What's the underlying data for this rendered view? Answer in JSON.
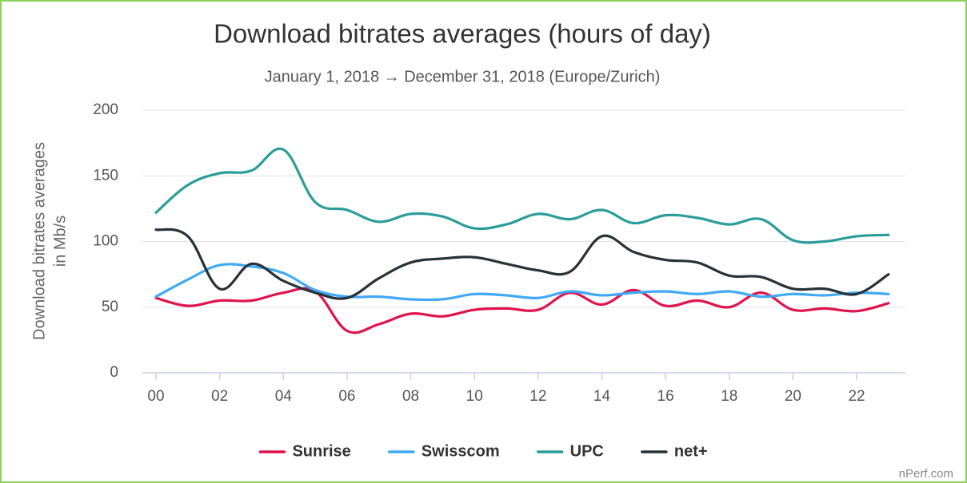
{
  "chart_data": {
    "type": "line",
    "title": "Download bitrates averages (hours of day)",
    "subtitle": "January 1, 2018 → December 31, 2018 (Europe/Zurich)",
    "ylabel": [
      "Download bitrates averages",
      "in Mb/s"
    ],
    "credit": "nPerf.com",
    "categories": [
      "00",
      null,
      "02",
      null,
      "04",
      null,
      "06",
      null,
      "08",
      null,
      "10",
      null,
      "12",
      null,
      "14",
      null,
      "16",
      null,
      "18",
      null,
      "20",
      null,
      "22",
      null
    ],
    "ylim": [
      0,
      200
    ],
    "yticks": [
      0,
      50,
      100,
      150,
      200
    ],
    "grid": true,
    "legend": "bottom",
    "series": [
      {
        "name": "Sunrise",
        "color": "#e0134e",
        "values": [
          57,
          51,
          55,
          55,
          61,
          62,
          32,
          37,
          45,
          43,
          48,
          49,
          48,
          61,
          52,
          63,
          51,
          55,
          50,
          61,
          48,
          49,
          47,
          53
        ]
      },
      {
        "name": "Swisscom",
        "color": "#3fa9f5",
        "values": [
          58,
          71,
          82,
          81,
          76,
          63,
          58,
          58,
          56,
          56,
          60,
          59,
          57,
          62,
          59,
          61,
          62,
          60,
          62,
          58,
          60,
          59,
          61,
          60
        ]
      },
      {
        "name": "UPC",
        "color": "#2a9d9a",
        "values": [
          122,
          143,
          152,
          154,
          170,
          130,
          124,
          115,
          121,
          119,
          110,
          113,
          121,
          117,
          124,
          114,
          120,
          118,
          113,
          117,
          101,
          100,
          104,
          105
        ]
      },
      {
        "name": "net+",
        "color": "#263238",
        "values": [
          109,
          104,
          64,
          83,
          70,
          61,
          57,
          72,
          84,
          87,
          88,
          83,
          78,
          77,
          104,
          92,
          86,
          84,
          74,
          73,
          64,
          64,
          60,
          75
        ]
      }
    ]
  }
}
